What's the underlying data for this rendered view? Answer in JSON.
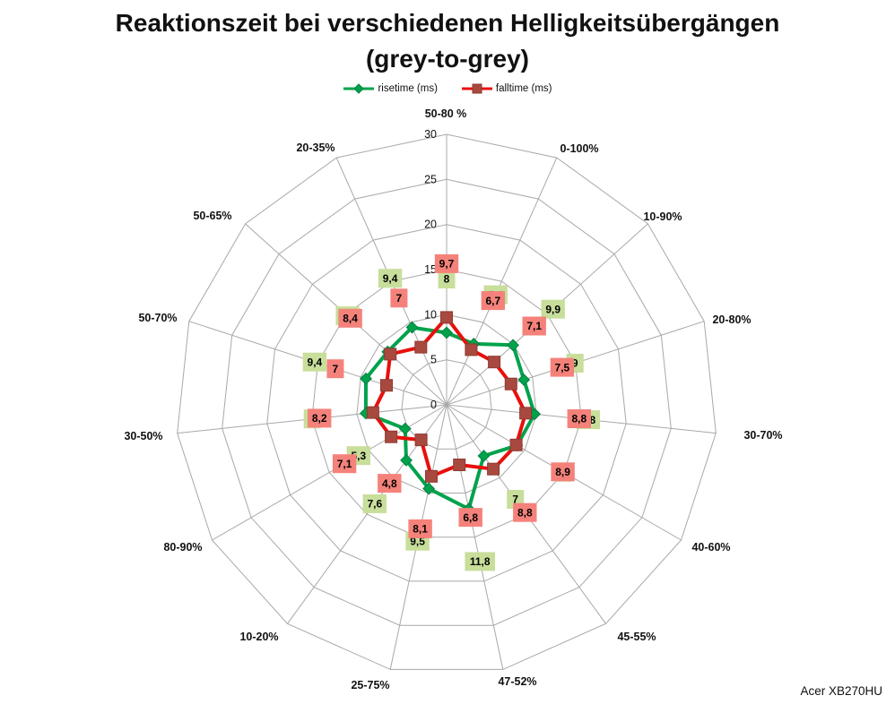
{
  "title": {
    "line1": "Reaktionszeit bei verschiedenen Helligkeitsübergängen",
    "line2": "(grey-to-grey)"
  },
  "branding": "Acer XB270HU",
  "chart_data": {
    "type": "radar",
    "title": "Reaktionszeit bei verschiedenen Helligkeitsübergängen (grey-to-grey)",
    "legend_position": "top",
    "grid": true,
    "grid_color": "#A8A8A8",
    "categories": [
      "50-80 %",
      "0-100%",
      "10-90%",
      "20-80%",
      "30-70%",
      "40-60%",
      "45-55%",
      "47-52%",
      "25-75%",
      "10-20%",
      "80-90%",
      "30-50%",
      "50-70%",
      "50-65%",
      "20-35%"
    ],
    "radial_axis": {
      "min": 0,
      "max": 30,
      "step": 5,
      "tick_labels": [
        "0",
        "5",
        "10",
        "15",
        "20",
        "25",
        "30"
      ]
    },
    "series": [
      {
        "name": "risetime (ms)",
        "line_color": "#00A24C",
        "marker": "diamond",
        "marker_color": "#00A24C",
        "marker_edge": "#05803E",
        "label_bg": "#C8DE9B",
        "values": [
          8,
          7.4,
          9.9,
          9,
          9.8,
          9,
          7,
          11.8,
          9.5,
          7.6,
          5.3,
          9,
          9.4,
          8.8,
          9.4
        ]
      },
      {
        "name": "falltime (ms)",
        "line_color": "#E8100C",
        "marker": "square",
        "marker_color": "#A8493F",
        "marker_edge": "#8E3A31",
        "label_bg": "#F4827B",
        "values": [
          9.7,
          6.7,
          7.1,
          7.5,
          8.8,
          8.9,
          8.8,
          6.8,
          8.1,
          4.8,
          7.1,
          8.2,
          7,
          8.4,
          7
        ]
      }
    ]
  }
}
